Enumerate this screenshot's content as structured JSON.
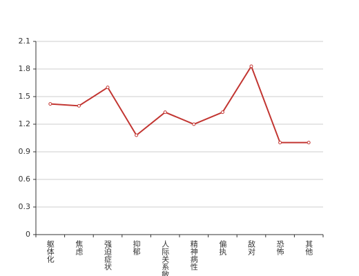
{
  "chart_data": {
    "type": "line",
    "categories": [
      "躯体化",
      "焦虑",
      "强迫症状",
      "抑郁",
      "人际关系敏感",
      "精神病性",
      "偏执",
      "敌对",
      "恐怖",
      "其他"
    ],
    "series": [
      {
        "color": "#c23531",
        "values": [
          1.42,
          1.4,
          1.6,
          1.08,
          1.33,
          1.2,
          1.33,
          1.83,
          1.0,
          1.0
        ]
      }
    ],
    "ylim": [
      0,
      2.1
    ],
    "yticks": [
      0,
      {
        "value": 0.3,
        "label": "0.3"
      },
      {
        "value": 0.6,
        "label": "0.6"
      },
      {
        "value": 0.9,
        "label": "0.9"
      },
      {
        "value": 1.2,
        "label": "1.2"
      },
      {
        "value": 1.5,
        "label": "1.5"
      },
      {
        "value": 1.8,
        "label": "1.8"
      },
      {
        "value": 2.1,
        "label": "2.1"
      }
    ],
    "grid": true
  }
}
